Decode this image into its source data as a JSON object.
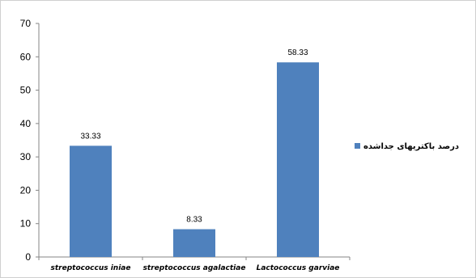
{
  "chart_data": {
    "type": "bar",
    "categories": [
      "streptococcus iniae",
      "streptococcus agalactiae",
      "Lactococcus garviae"
    ],
    "series": [
      {
        "name": "درصد باکتریهای جداشده",
        "values": [
          33.33,
          8.33,
          58.33
        ],
        "color": "#4F81BD"
      }
    ],
    "data_labels": [
      "33.33",
      "8.33",
      "58.33"
    ],
    "ylim": [
      0,
      70
    ],
    "yticks": [
      0,
      10,
      20,
      30,
      40,
      50,
      60,
      70
    ],
    "grid": false,
    "legend_position": "right"
  }
}
